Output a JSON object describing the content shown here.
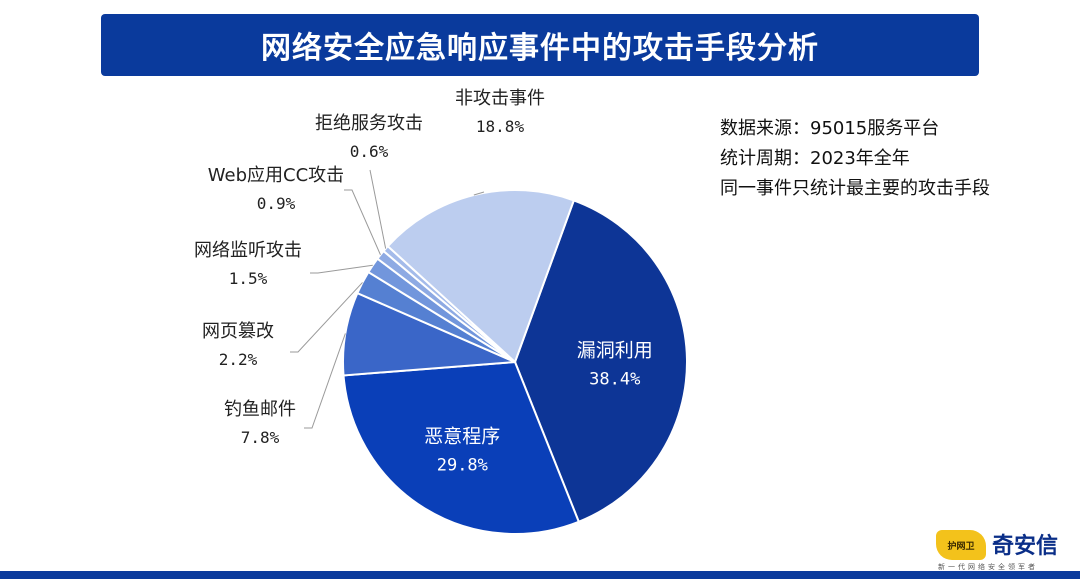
{
  "header": {
    "title": "网络安全应急响应事件中的攻击手段分析"
  },
  "notes": [
    "数据来源：95015服务平台",
    "统计周期：2023年全年",
    "同一事件只统计最主要的攻击手段"
  ],
  "logo": {
    "mark_text": "护网卫",
    "name": "奇安信",
    "subtitle": "新一代网络安全领军者"
  },
  "colors": {
    "title_bar": "#0a3a9c",
    "bottom_bar": "#0a3a9c",
    "logo_yellow": "#f3c21b"
  },
  "chart_data": {
    "type": "pie",
    "title": "",
    "slices": [
      {
        "label": "漏洞利用",
        "value": 38.4,
        "value_label": "38.4%",
        "color": "#0d3596",
        "label_inside": true
      },
      {
        "label": "恶意程序",
        "value": 29.8,
        "value_label": "29.8%",
        "color": "#0a3fb8",
        "label_inside": true
      },
      {
        "label": "钓鱼邮件",
        "value": 7.8,
        "value_label": "7.8%",
        "color": "#3a66c8",
        "label_inside": false
      },
      {
        "label": "网页篡改",
        "value": 2.2,
        "value_label": "2.2%",
        "color": "#5580d2",
        "label_inside": false
      },
      {
        "label": "网络监听攻击",
        "value": 1.5,
        "value_label": "1.5%",
        "color": "#7296dc",
        "label_inside": false
      },
      {
        "label": "Web应用CC攻击",
        "value": 0.9,
        "value_label": "0.9%",
        "color": "#8eaae3",
        "label_inside": false
      },
      {
        "label": "拒绝服务攻击",
        "value": 0.6,
        "value_label": "0.6%",
        "color": "#a4bbea",
        "label_inside": false
      },
      {
        "label": "非攻击事件",
        "value": 18.8,
        "value_label": "18.8%",
        "color": "#bccdef",
        "label_inside": false
      }
    ]
  }
}
